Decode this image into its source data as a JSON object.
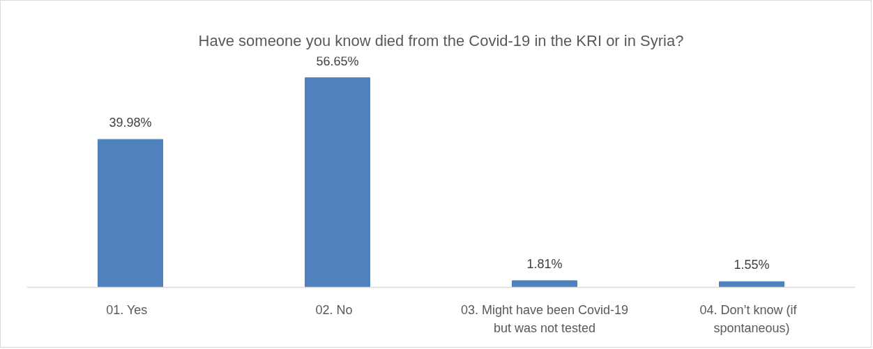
{
  "chart_data": {
    "type": "bar",
    "title": "Have someone you know died from the Covid-19 in the KRI or in Syria?",
    "categories": [
      "01.   Yes",
      "02.   No",
      "03. Might have been Covid-19 but was not tested",
      "04.   Don’t know (if spontaneous)"
    ],
    "values": [
      39.98,
      56.65,
      1.81,
      1.55
    ],
    "color": "#4f81bd",
    "value_labels": [
      "39.98%",
      "56.65%",
      "1.81%",
      "1.55%"
    ],
    "tick_labels": "x"
  }
}
